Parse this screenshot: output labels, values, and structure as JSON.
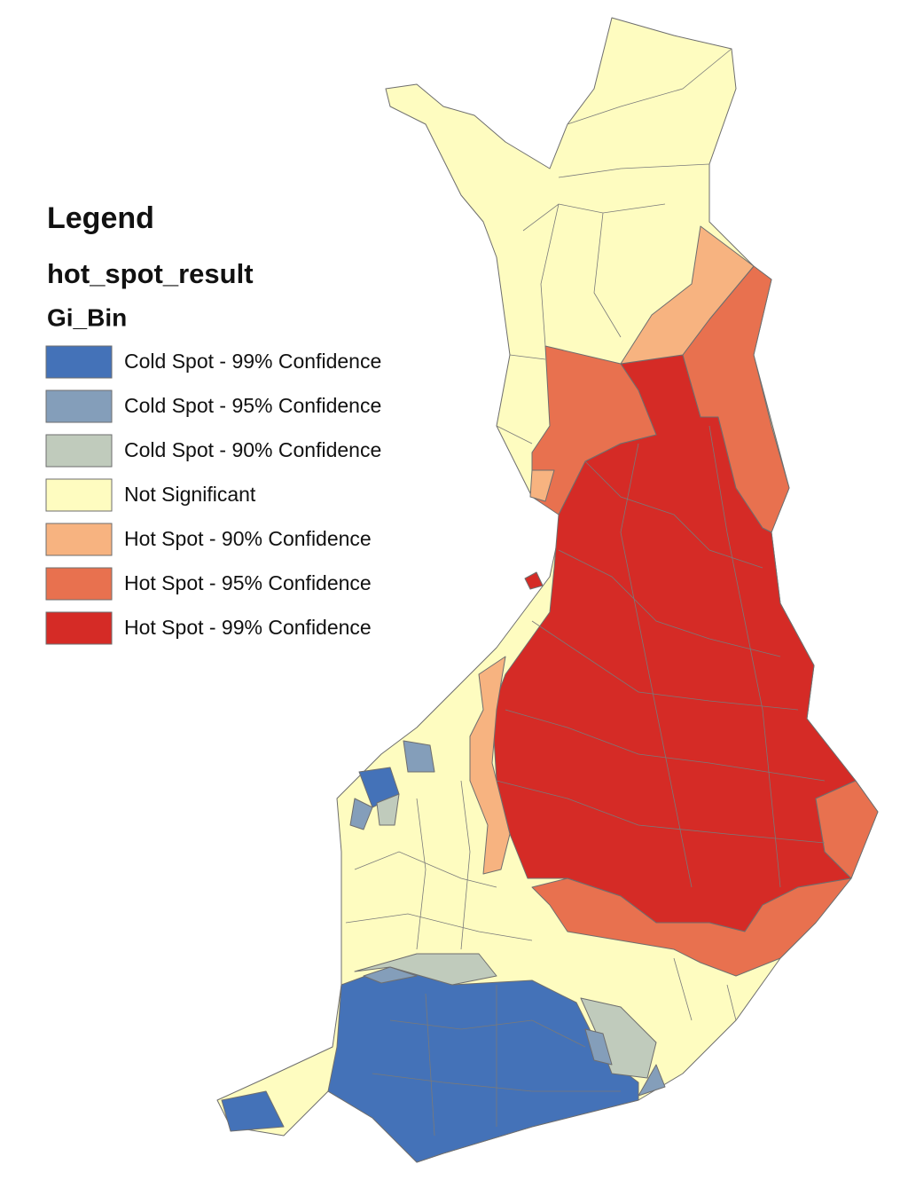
{
  "legend": {
    "title": "Legend",
    "layer": "hot_spot_result",
    "field": "Gi_Bin",
    "items": [
      {
        "label": "Cold Spot - 99% Confidence",
        "color": "#4472b8"
      },
      {
        "label": "Cold Spot - 95% Confidence",
        "color": "#849eba"
      },
      {
        "label": "Cold Spot - 90% Confidence",
        "color": "#c0cbbc"
      },
      {
        "label": "Not Significant",
        "color": "#fefcc0"
      },
      {
        "label": "Hot Spot - 90% Confidence",
        "color": "#f7b380"
      },
      {
        "label": "Hot Spot - 95% Confidence",
        "color": "#e8714f"
      },
      {
        "label": "Hot Spot - 99% Confidence",
        "color": "#d52b26"
      }
    ]
  }
}
